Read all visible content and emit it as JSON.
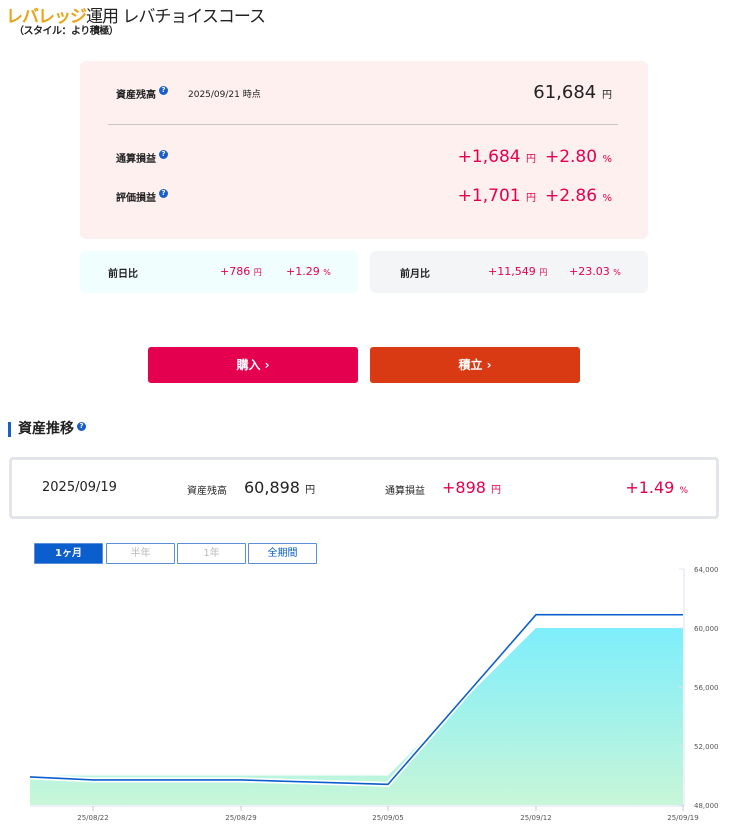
{
  "header": {
    "title_brand": "レバレッジ",
    "title_rest": "運用 レバチョイスコース",
    "subtitle": "（スタイル：より積極）"
  },
  "summary": {
    "balance_label": "資産残高",
    "as_of": "2025/09/21 時点",
    "balance": "61,684",
    "yen": "円",
    "pct": "%",
    "total_pl_label": "通算損益",
    "total_pl": "+1,684",
    "total_pl_pct": "+2.80",
    "eval_pl_label": "評価損益",
    "eval_pl": "+1,701",
    "eval_pl_pct": "+2.86",
    "day_label": "前日比",
    "day_value": "+786",
    "day_pct": "+1.29",
    "month_label": "前月比",
    "month_value": "+11,549",
    "month_pct": "+23.03"
  },
  "buttons": {
    "buy": "購入 ›",
    "reserve": "積立 ›"
  },
  "colors": {
    "buy": "#e5004f",
    "reserve": "#d93a14",
    "accent": "#0a5fcc",
    "positive": "#e5004f"
  },
  "history": {
    "title": "資産推移",
    "date": "2025/09/19",
    "balance_label": "資産残高",
    "balance": "60,898",
    "pl_label": "通算損益",
    "pl": "+898",
    "pl_pct": "+1.49",
    "tabs": [
      {
        "label": "1ヶ月",
        "active": true
      },
      {
        "label": "半年",
        "disabled": true
      },
      {
        "label": "1年",
        "disabled": true
      },
      {
        "label": "全期間"
      }
    ]
  },
  "chart_data": {
    "type": "line",
    "x": [
      "25/08/19",
      "25/08/22",
      "25/08/29",
      "25/09/05",
      "25/09/12",
      "25/09/19"
    ],
    "x_ticks": [
      "25/08/22",
      "25/08/29",
      "25/09/05",
      "25/09/12",
      "25/09/19"
    ],
    "series": [
      {
        "values": [
          49900,
          49700,
          49700,
          49400,
          60900,
          60898
        ],
        "color": "#0a5fcc",
        "kind": "line"
      },
      {
        "values": [
          50000,
          50000,
          50000,
          50000,
          60000,
          60000
        ],
        "kind": "area",
        "colors": [
          "#7eeefc",
          "#c8f6d8"
        ]
      }
    ],
    "y_ticks": [
      "48,000",
      "52,000",
      "56,000",
      "60,000",
      "64,000"
    ],
    "ylim": [
      48000,
      64000
    ],
    "y_axis": "right"
  }
}
